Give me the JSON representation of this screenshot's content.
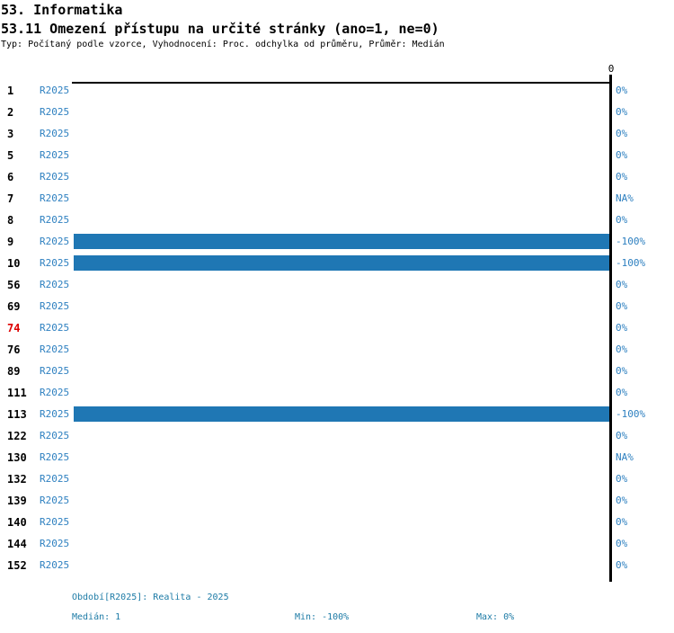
{
  "header": {
    "title": "53. Informatika",
    "subtitle": "53.11 Omezení přístupu na určité stránky (ano=1, ne=0)",
    "meta": "Typ: Počítaný podle vzorce, Vyhodnocení: Proc. odchylka od průměru, Průměr: Medián"
  },
  "chart_data": {
    "type": "bar",
    "orientation": "horizontal",
    "title": "53.11 Omezení přístupu na určité stránky (ano=1, ne=0)",
    "axis_top_label": "0",
    "value_domain": [
      -100,
      0
    ],
    "legend_position": "none",
    "grid": false,
    "colors": {
      "bar": "#1f77b4",
      "label_blue": "#2e80c0",
      "highlight_row": "#dd0000",
      "footer_blue": "#1d7ba6",
      "axis": "#000000"
    },
    "rows": [
      {
        "id": "1",
        "period": "R2025",
        "value": 0,
        "value_label": "0%",
        "highlight": false
      },
      {
        "id": "2",
        "period": "R2025",
        "value": 0,
        "value_label": "0%",
        "highlight": false
      },
      {
        "id": "3",
        "period": "R2025",
        "value": 0,
        "value_label": "0%",
        "highlight": false
      },
      {
        "id": "5",
        "period": "R2025",
        "value": 0,
        "value_label": "0%",
        "highlight": false
      },
      {
        "id": "6",
        "period": "R2025",
        "value": 0,
        "value_label": "0%",
        "highlight": false
      },
      {
        "id": "7",
        "period": "R2025",
        "value": null,
        "value_label": "NA%",
        "highlight": false
      },
      {
        "id": "8",
        "period": "R2025",
        "value": 0,
        "value_label": "0%",
        "highlight": false
      },
      {
        "id": "9",
        "period": "R2025",
        "value": -100,
        "value_label": "-100%",
        "highlight": false
      },
      {
        "id": "10",
        "period": "R2025",
        "value": -100,
        "value_label": "-100%",
        "highlight": false
      },
      {
        "id": "56",
        "period": "R2025",
        "value": 0,
        "value_label": "0%",
        "highlight": false
      },
      {
        "id": "69",
        "period": "R2025",
        "value": 0,
        "value_label": "0%",
        "highlight": false
      },
      {
        "id": "74",
        "period": "R2025",
        "value": 0,
        "value_label": "0%",
        "highlight": true
      },
      {
        "id": "76",
        "period": "R2025",
        "value": 0,
        "value_label": "0%",
        "highlight": false
      },
      {
        "id": "89",
        "period": "R2025",
        "value": 0,
        "value_label": "0%",
        "highlight": false
      },
      {
        "id": "111",
        "period": "R2025",
        "value": 0,
        "value_label": "0%",
        "highlight": false
      },
      {
        "id": "113",
        "period": "R2025",
        "value": -100,
        "value_label": "-100%",
        "highlight": false
      },
      {
        "id": "122",
        "period": "R2025",
        "value": 0,
        "value_label": "0%",
        "highlight": false
      },
      {
        "id": "130",
        "period": "R2025",
        "value": null,
        "value_label": "NA%",
        "highlight": false
      },
      {
        "id": "132",
        "period": "R2025",
        "value": 0,
        "value_label": "0%",
        "highlight": false
      },
      {
        "id": "139",
        "period": "R2025",
        "value": 0,
        "value_label": "0%",
        "highlight": false
      },
      {
        "id": "140",
        "period": "R2025",
        "value": 0,
        "value_label": "0%",
        "highlight": false
      },
      {
        "id": "144",
        "period": "R2025",
        "value": 0,
        "value_label": "0%",
        "highlight": false
      },
      {
        "id": "152",
        "period": "R2025",
        "value": 0,
        "value_label": "0%",
        "highlight": false
      }
    ]
  },
  "footer": {
    "period_line": "Období[R2025]: Realita - 2025",
    "median": "Medián: 1",
    "min": "Min: -100%",
    "max": "Max: 0%"
  }
}
